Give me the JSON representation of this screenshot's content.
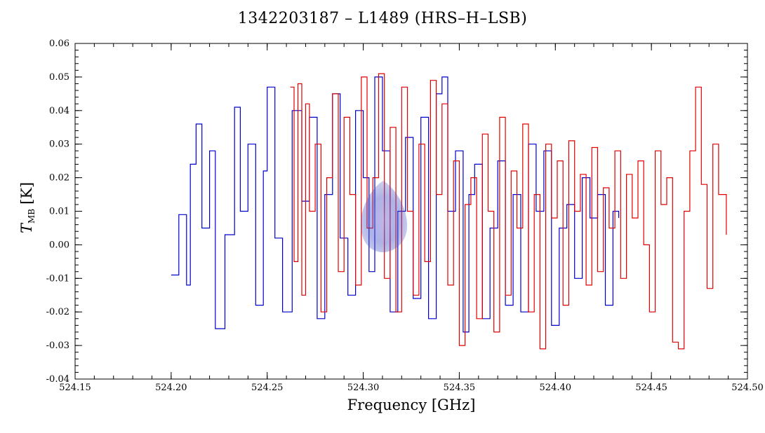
{
  "chart_data": {
    "type": "line",
    "title": "1342203187 – L1489 (HRS–H–LSB)",
    "xlabel": "Frequency [GHz]",
    "ylabel": {
      "symbol": "T",
      "subscript": "MB",
      "unit": "[K]"
    },
    "xlim": [
      524.15,
      524.5
    ],
    "ylim": [
      -0.04,
      0.06
    ],
    "x_ticks": [
      "524.15",
      "524.20",
      "524.25",
      "524.30",
      "524.35",
      "524.40",
      "524.45",
      "524.50"
    ],
    "x_tick_values": [
      524.15,
      524.2,
      524.25,
      524.3,
      524.35,
      524.4,
      524.45,
      524.5
    ],
    "y_ticks": [
      "-0.04",
      "-0.03",
      "-0.02",
      "-0.01",
      "0.00",
      "0.01",
      "0.02",
      "0.03",
      "0.04",
      "0.05",
      "0.06"
    ],
    "y_tick_values": [
      -0.04,
      -0.03,
      -0.02,
      -0.01,
      0.0,
      0.01,
      0.02,
      0.03,
      0.04,
      0.05,
      0.06
    ],
    "grid": false,
    "series": [
      {
        "color": "#0000cc",
        "style": "step",
        "x": [
          524.2,
          524.204,
          524.208,
          524.21,
          524.213,
          524.216,
          524.22,
          524.223,
          524.228,
          524.233,
          524.236,
          524.24,
          524.244,
          524.248,
          524.25,
          524.254,
          524.258,
          524.263,
          524.268,
          524.272,
          524.276,
          524.28,
          524.284,
          524.288,
          524.292,
          524.296,
          524.3,
          524.303,
          524.306,
          524.31,
          524.314,
          524.318,
          524.322,
          524.326,
          524.33,
          524.334,
          524.338,
          524.341,
          524.344,
          524.348,
          524.352,
          524.355,
          524.358,
          524.362,
          524.366,
          524.37,
          524.374,
          524.378,
          524.382,
          524.386,
          524.39,
          524.394,
          524.398,
          524.402,
          524.406,
          524.41,
          524.414,
          524.418,
          524.422,
          524.426,
          524.43,
          524.433
        ],
        "y": [
          -0.009,
          0.009,
          -0.012,
          0.024,
          0.036,
          0.005,
          0.028,
          -0.025,
          0.003,
          0.041,
          0.01,
          0.03,
          -0.018,
          0.022,
          0.047,
          0.002,
          -0.02,
          0.04,
          0.013,
          0.038,
          -0.022,
          0.015,
          0.045,
          0.002,
          -0.015,
          0.04,
          0.02,
          -0.008,
          0.05,
          0.028,
          -0.02,
          0.01,
          0.032,
          -0.016,
          0.038,
          -0.022,
          0.045,
          0.05,
          0.01,
          0.028,
          -0.026,
          0.015,
          0.024,
          -0.022,
          0.005,
          0.025,
          -0.018,
          0.015,
          -0.02,
          0.03,
          0.01,
          0.028,
          -0.024,
          0.005,
          0.012,
          -0.01,
          0.02,
          0.008,
          0.015,
          -0.018,
          0.01,
          0.008
        ]
      },
      {
        "color": "#e00000",
        "style": "step",
        "x": [
          524.262,
          524.264,
          524.266,
          524.268,
          524.27,
          524.272,
          524.275,
          524.278,
          524.281,
          524.284,
          524.287,
          524.29,
          524.293,
          524.296,
          524.299,
          524.302,
          524.305,
          524.308,
          524.311,
          524.314,
          524.317,
          524.32,
          524.323,
          524.326,
          524.329,
          524.332,
          524.335,
          524.338,
          524.341,
          524.344,
          524.347,
          524.35,
          524.353,
          524.356,
          524.359,
          524.362,
          524.365,
          524.368,
          524.371,
          524.374,
          524.377,
          524.38,
          524.383,
          524.386,
          524.389,
          524.392,
          524.395,
          524.398,
          524.401,
          524.404,
          524.407,
          524.41,
          524.413,
          524.416,
          524.419,
          524.422,
          524.425,
          524.428,
          524.431,
          524.434,
          524.437,
          524.44,
          524.443,
          524.446,
          524.449,
          524.452,
          524.455,
          524.458,
          524.461,
          524.464,
          524.467,
          524.47,
          524.473,
          524.476,
          524.479,
          524.482,
          524.485,
          524.489
        ],
        "y": [
          0.047,
          -0.005,
          0.048,
          -0.015,
          0.042,
          0.01,
          0.03,
          -0.02,
          0.02,
          0.045,
          -0.008,
          0.038,
          0.015,
          -0.012,
          0.05,
          0.005,
          0.02,
          0.051,
          -0.01,
          0.035,
          -0.02,
          0.047,
          0.01,
          -0.015,
          0.03,
          -0.005,
          0.049,
          0.015,
          0.042,
          -0.012,
          0.025,
          -0.03,
          0.012,
          0.02,
          -0.022,
          0.033,
          0.01,
          -0.026,
          0.038,
          -0.015,
          0.022,
          0.005,
          0.036,
          -0.02,
          0.015,
          -0.031,
          0.03,
          0.008,
          0.025,
          -0.018,
          0.031,
          0.01,
          0.021,
          -0.012,
          0.029,
          -0.008,
          0.017,
          0.005,
          0.028,
          -0.01,
          0.021,
          0.008,
          0.025,
          0.0,
          -0.02,
          0.028,
          0.012,
          0.02,
          -0.029,
          -0.031,
          0.01,
          0.028,
          0.047,
          0.018,
          -0.013,
          0.03,
          0.015,
          0.003
        ]
      }
    ]
  }
}
